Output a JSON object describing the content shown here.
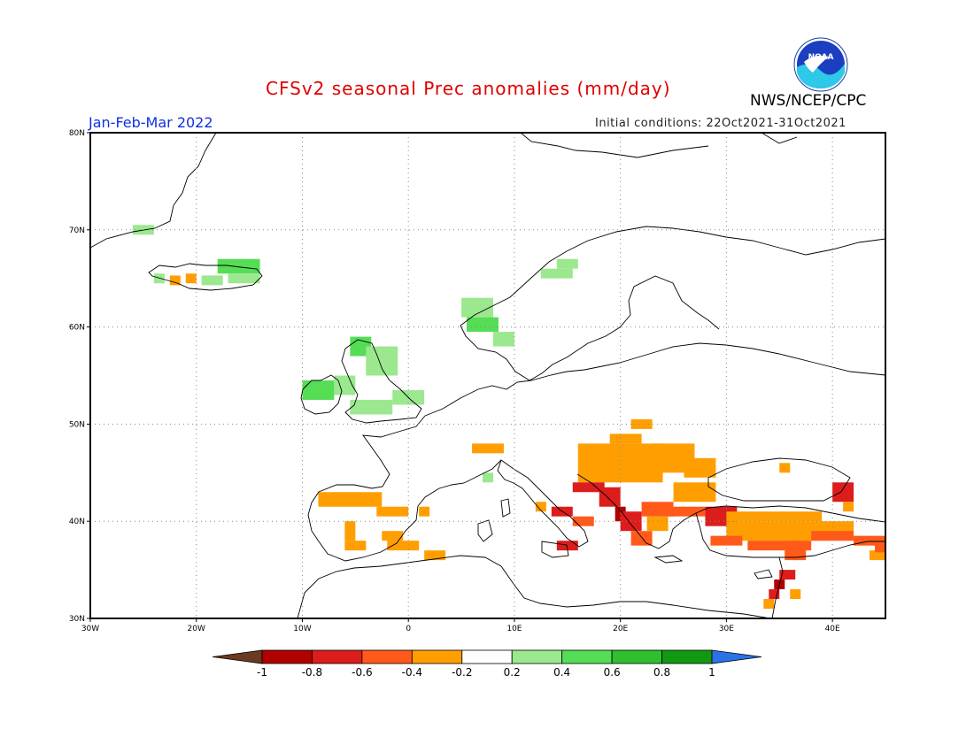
{
  "title": "CFSv2 seasonal Prec anomalies (mm/day)",
  "agency": "NWS/NCEP/CPC",
  "logo_text": "NOAA",
  "period": "Jan-Feb-Mar 2022",
  "initial_conditions": "Initial conditions: 22Oct2021-31Oct2021",
  "lon_ticks": [
    {
      "value": -30,
      "label": "30W"
    },
    {
      "value": -20,
      "label": "20W"
    },
    {
      "value": -10,
      "label": "10W"
    },
    {
      "value": 0,
      "label": "0"
    },
    {
      "value": 10,
      "label": "10E"
    },
    {
      "value": 20,
      "label": "20E"
    },
    {
      "value": 30,
      "label": "30E"
    },
    {
      "value": 40,
      "label": "40E"
    }
  ],
  "lat_ticks": [
    {
      "value": 30,
      "label": "30N"
    },
    {
      "value": 40,
      "label": "40N"
    },
    {
      "value": 50,
      "label": "50N"
    },
    {
      "value": 60,
      "label": "60N"
    },
    {
      "value": 70,
      "label": "70N"
    },
    {
      "value": 80,
      "label": "80N"
    }
  ],
  "extent": {
    "lon_min": -30,
    "lon_max": 45,
    "lat_min": 30,
    "lat_max": 80
  },
  "colorbar": {
    "labels": [
      "-1",
      "-0.8",
      "-0.6",
      "-0.4",
      "-0.2",
      "0.2",
      "0.4",
      "0.6",
      "0.8",
      "1"
    ],
    "colors": [
      "#6b3a24",
      "#b00000",
      "#dd1c1c",
      "#ff5a1a",
      "#ff9e00",
      "#ffffff",
      "#9be88f",
      "#55dd55",
      "#2fbf2f",
      "#129912",
      "#2a72e8"
    ]
  },
  "anomaly_colors": {
    "wet1": "#9be88f",
    "wet2": "#55dd55",
    "dry1": "#ff9e00",
    "dry2": "#ff5a1a",
    "dry3": "#dd1c1c",
    "dry4": "#b00000"
  },
  "anomalies": [
    {
      "lon": -26,
      "lat": 69.5,
      "w": 2,
      "h": 1,
      "c": "wet1"
    },
    {
      "lon": -24,
      "lat": 64.5,
      "w": 1,
      "h": 1,
      "c": "wet1"
    },
    {
      "lon": -22.5,
      "lat": 64.3,
      "w": 1,
      "h": 1,
      "c": "dry1"
    },
    {
      "lon": -21,
      "lat": 64.5,
      "w": 1,
      "h": 1,
      "c": "dry1"
    },
    {
      "lon": -19.5,
      "lat": 64.3,
      "w": 2,
      "h": 1,
      "c": "wet1"
    },
    {
      "lon": -18,
      "lat": 65.5,
      "w": 4,
      "h": 1.5,
      "c": "wet2"
    },
    {
      "lon": -17,
      "lat": 64.5,
      "w": 3,
      "h": 1,
      "c": "wet1"
    },
    {
      "lon": -10,
      "lat": 52.5,
      "w": 3,
      "h": 2,
      "c": "wet2"
    },
    {
      "lon": -7,
      "lat": 53,
      "w": 2,
      "h": 2,
      "c": "wet1"
    },
    {
      "lon": -5.5,
      "lat": 57,
      "w": 2,
      "h": 2,
      "c": "wet2"
    },
    {
      "lon": -4,
      "lat": 55,
      "w": 3,
      "h": 3,
      "c": "wet1"
    },
    {
      "lon": -5.5,
      "lat": 51,
      "w": 4,
      "h": 1.5,
      "c": "wet1"
    },
    {
      "lon": -1.5,
      "lat": 52,
      "w": 3,
      "h": 1.5,
      "c": "wet1"
    },
    {
      "lon": 5,
      "lat": 61,
      "w": 3,
      "h": 2,
      "c": "wet1"
    },
    {
      "lon": 5.5,
      "lat": 59.5,
      "w": 3,
      "h": 1.5,
      "c": "wet2"
    },
    {
      "lon": 8,
      "lat": 58,
      "w": 2,
      "h": 1.5,
      "c": "wet1"
    },
    {
      "lon": 12.5,
      "lat": 65,
      "w": 3,
      "h": 1,
      "c": "wet1"
    },
    {
      "lon": 14,
      "lat": 66,
      "w": 2,
      "h": 1,
      "c": "wet1"
    },
    {
      "lon": 6,
      "lat": 47,
      "w": 3,
      "h": 1,
      "c": "dry1"
    },
    {
      "lon": 7,
      "lat": 44,
      "w": 1,
      "h": 1,
      "c": "wet1"
    },
    {
      "lon": 21,
      "lat": 49.5,
      "w": 2,
      "h": 1,
      "c": "dry1"
    },
    {
      "lon": 16,
      "lat": 44,
      "w": 8,
      "h": 4,
      "c": "dry1"
    },
    {
      "lon": 19,
      "lat": 48,
      "w": 3,
      "h": 1,
      "c": "dry1"
    },
    {
      "lon": 23,
      "lat": 45,
      "w": 4,
      "h": 3,
      "c": "dry1"
    },
    {
      "lon": 26,
      "lat": 44.5,
      "w": 3,
      "h": 2,
      "c": "dry1"
    },
    {
      "lon": 25,
      "lat": 42,
      "w": 4,
      "h": 2,
      "c": "dry1"
    },
    {
      "lon": 35,
      "lat": 45,
      "w": 1,
      "h": 1,
      "c": "dry1"
    },
    {
      "lon": 15.5,
      "lat": 43,
      "w": 3,
      "h": 1,
      "c": "dry3"
    },
    {
      "lon": 18,
      "lat": 41.5,
      "w": 2,
      "h": 2,
      "c": "dry3"
    },
    {
      "lon": 19.5,
      "lat": 40,
      "w": 1,
      "h": 1.5,
      "c": "dry4"
    },
    {
      "lon": 20,
      "lat": 39,
      "w": 2,
      "h": 2,
      "c": "dry3"
    },
    {
      "lon": 21,
      "lat": 37.5,
      "w": 2,
      "h": 1.5,
      "c": "dry2"
    },
    {
      "lon": 22,
      "lat": 40.5,
      "w": 3,
      "h": 1.5,
      "c": "dry2"
    },
    {
      "lon": 24,
      "lat": 40.5,
      "w": 4,
      "h": 1,
      "c": "dry2"
    },
    {
      "lon": 22.5,
      "lat": 39,
      "w": 2,
      "h": 1.5,
      "c": "dry1"
    },
    {
      "lon": 12,
      "lat": 41,
      "w": 1,
      "h": 1,
      "c": "dry1"
    },
    {
      "lon": 13.5,
      "lat": 40.5,
      "w": 2,
      "h": 1,
      "c": "dry3"
    },
    {
      "lon": 15.5,
      "lat": 39.5,
      "w": 2,
      "h": 1,
      "c": "dry2"
    },
    {
      "lon": 14,
      "lat": 37,
      "w": 2,
      "h": 1,
      "c": "dry3"
    },
    {
      "lon": 28,
      "lat": 39.5,
      "w": 3,
      "h": 2,
      "c": "dry3"
    },
    {
      "lon": 30,
      "lat": 40,
      "w": 9,
      "h": 1,
      "c": "dry1"
    },
    {
      "lon": 30,
      "lat": 38,
      "w": 12,
      "h": 2,
      "c": "dry1"
    },
    {
      "lon": 28.5,
      "lat": 37.5,
      "w": 3,
      "h": 1,
      "c": "dry2"
    },
    {
      "lon": 32,
      "lat": 37,
      "w": 6,
      "h": 1,
      "c": "dry2"
    },
    {
      "lon": 38,
      "lat": 38,
      "w": 4,
      "h": 1,
      "c": "dry2"
    },
    {
      "lon": 42,
      "lat": 37.5,
      "w": 3,
      "h": 1,
      "c": "dry2"
    },
    {
      "lon": 40,
      "lat": 42,
      "w": 2,
      "h": 2,
      "c": "dry3"
    },
    {
      "lon": 41,
      "lat": 41,
      "w": 1,
      "h": 1,
      "c": "dry1"
    },
    {
      "lon": 35.5,
      "lat": 36,
      "w": 2,
      "h": 2,
      "c": "dry2"
    },
    {
      "lon": 35,
      "lat": 34,
      "w": 1.5,
      "h": 1,
      "c": "dry3"
    },
    {
      "lon": 34.5,
      "lat": 33,
      "w": 1,
      "h": 1,
      "c": "dry4"
    },
    {
      "lon": 34,
      "lat": 32,
      "w": 1,
      "h": 1,
      "c": "dry3"
    },
    {
      "lon": 36,
      "lat": 32,
      "w": 1,
      "h": 1,
      "c": "dry1"
    },
    {
      "lon": 33.5,
      "lat": 31,
      "w": 1,
      "h": 1,
      "c": "dry1"
    },
    {
      "lon": 43.5,
      "lat": 36,
      "w": 1.5,
      "h": 1,
      "c": "dry1"
    },
    {
      "lon": 44,
      "lat": 36.8,
      "w": 1,
      "h": 1,
      "c": "dry2"
    },
    {
      "lon": -8.5,
      "lat": 41.5,
      "w": 6,
      "h": 1.5,
      "c": "dry1"
    },
    {
      "lon": -3,
      "lat": 40.5,
      "w": 3,
      "h": 1,
      "c": "dry1"
    },
    {
      "lon": 1,
      "lat": 40.5,
      "w": 1,
      "h": 1,
      "c": "dry1"
    },
    {
      "lon": -6,
      "lat": 38,
      "w": 1,
      "h": 2,
      "c": "dry1"
    },
    {
      "lon": -6,
      "lat": 37,
      "w": 2,
      "h": 1,
      "c": "dry1"
    },
    {
      "lon": -2.5,
      "lat": 38,
      "w": 2,
      "h": 1,
      "c": "dry1"
    },
    {
      "lon": -2,
      "lat": 37,
      "w": 3,
      "h": 1,
      "c": "dry1"
    },
    {
      "lon": 1.5,
      "lat": 36,
      "w": 2,
      "h": 1,
      "c": "dry1"
    }
  ]
}
